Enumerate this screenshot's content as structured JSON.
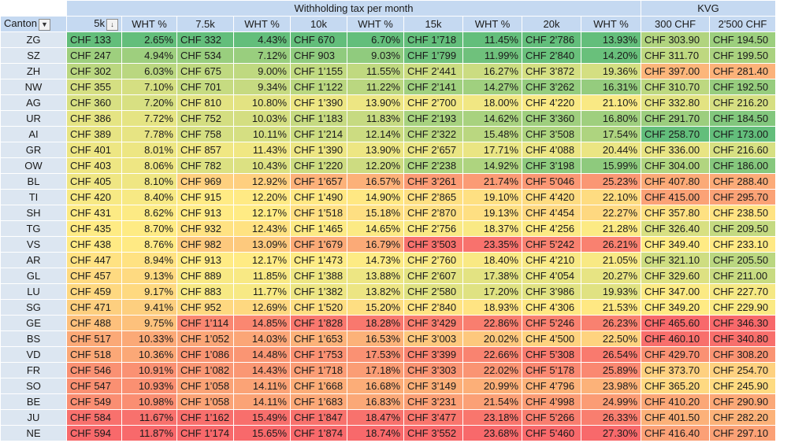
{
  "header": {
    "group_wht": "Withholding tax per month",
    "group_kvg": "KVG",
    "columns": [
      "Canton",
      "5k",
      "WHT %",
      "7.5k",
      "WHT %",
      "10k",
      "WHT %",
      "15k",
      "WHT %",
      "20k",
      "WHT %",
      "300 CHF",
      "2'500 CHF"
    ],
    "filter_icon": "▼",
    "sort_icon": "↓"
  },
  "rows": [
    [
      "ZG",
      "CHF 133",
      "2.65%",
      "CHF 332",
      "4.43%",
      "CHF 670",
      "6.70%",
      "CHF 1’718",
      "11.45%",
      "CHF 2’786",
      "13.93%",
      "CHF 303.90",
      "CHF 194.50"
    ],
    [
      "SZ",
      "CHF 247",
      "4.94%",
      "CHF 534",
      "7.12%",
      "CHF 903",
      "9.03%",
      "CHF 1’799",
      "11.99%",
      "CHF 2’840",
      "14.20%",
      "CHF 311.70",
      "CHF 199.50"
    ],
    [
      "ZH",
      "CHF 302",
      "6.03%",
      "CHF 675",
      "9.00%",
      "CHF 1’155",
      "11.55%",
      "CHF 2’441",
      "16.27%",
      "CHF 3’872",
      "19.36%",
      "CHF 397.00",
      "CHF 281.40"
    ],
    [
      "NW",
      "CHF 355",
      "7.10%",
      "CHF 701",
      "9.34%",
      "CHF 1’122",
      "11.22%",
      "CHF 2’141",
      "14.27%",
      "CHF 3’262",
      "16.31%",
      "CHF 310.70",
      "CHF 192.50"
    ],
    [
      "AG",
      "CHF 360",
      "7.20%",
      "CHF 810",
      "10.80%",
      "CHF 1’390",
      "13.90%",
      "CHF 2’700",
      "18.00%",
      "CHF 4’220",
      "21.10%",
      "CHF 332.80",
      "CHF 216.20"
    ],
    [
      "UR",
      "CHF 386",
      "7.72%",
      "CHF 752",
      "10.03%",
      "CHF 1’183",
      "11.83%",
      "CHF 2’193",
      "14.62%",
      "CHF 3’360",
      "16.80%",
      "CHF 291.70",
      "CHF 184.50"
    ],
    [
      "AI",
      "CHF 389",
      "7.78%",
      "CHF 758",
      "10.11%",
      "CHF 1’214",
      "12.14%",
      "CHF 2’322",
      "15.48%",
      "CHF 3’508",
      "17.54%",
      "CHF 258.70",
      "CHF 173.00"
    ],
    [
      "GR",
      "CHF 401",
      "8.01%",
      "CHF 857",
      "11.43%",
      "CHF 1’390",
      "13.90%",
      "CHF 2’657",
      "17.71%",
      "CHF 4’088",
      "20.44%",
      "CHF 336.00",
      "CHF 216.60"
    ],
    [
      "OW",
      "CHF 403",
      "8.06%",
      "CHF 782",
      "10.43%",
      "CHF 1’220",
      "12.20%",
      "CHF 2’238",
      "14.92%",
      "CHF 3’198",
      "15.99%",
      "CHF 304.00",
      "CHF 186.00"
    ],
    [
      "BL",
      "CHF 405",
      "8.10%",
      "CHF 969",
      "12.92%",
      "CHF 1’657",
      "16.57%",
      "CHF 3’261",
      "21.74%",
      "CHF 5’046",
      "25.23%",
      "CHF 407.80",
      "CHF 288.40"
    ],
    [
      "TI",
      "CHF 420",
      "8.40%",
      "CHF 915",
      "12.20%",
      "CHF 1’490",
      "14.90%",
      "CHF 2’865",
      "19.10%",
      "CHF 4’420",
      "22.10%",
      "CHF 415.00",
      "CHF 295.70"
    ],
    [
      "SH",
      "CHF 431",
      "8.62%",
      "CHF 913",
      "12.17%",
      "CHF 1’518",
      "15.18%",
      "CHF 2’870",
      "19.13%",
      "CHF 4’454",
      "22.27%",
      "CHF 357.80",
      "CHF 238.50"
    ],
    [
      "TG",
      "CHF 435",
      "8.70%",
      "CHF 932",
      "12.43%",
      "CHF 1’465",
      "14.65%",
      "CHF 2’756",
      "18.37%",
      "CHF 4’256",
      "21.28%",
      "CHF 326.40",
      "CHF 209.50"
    ],
    [
      "VS",
      "CHF 438",
      "8.76%",
      "CHF 982",
      "13.09%",
      "CHF 1’679",
      "16.79%",
      "CHF 3’503",
      "23.35%",
      "CHF 5’242",
      "26.21%",
      "CHF 349.40",
      "CHF 233.10"
    ],
    [
      "AR",
      "CHF 447",
      "8.94%",
      "CHF 913",
      "12.17%",
      "CHF 1’473",
      "14.73%",
      "CHF 2’760",
      "18.40%",
      "CHF 4’210",
      "21.05%",
      "CHF 321.10",
      "CHF 205.50"
    ],
    [
      "GL",
      "CHF 457",
      "9.13%",
      "CHF 889",
      "11.85%",
      "CHF 1’388",
      "13.88%",
      "CHF 2’607",
      "17.38%",
      "CHF 4’054",
      "20.27%",
      "CHF 329.60",
      "CHF 211.00"
    ],
    [
      "LU",
      "CHF 459",
      "9.17%",
      "CHF 883",
      "11.77%",
      "CHF 1’382",
      "13.82%",
      "CHF 2’580",
      "17.20%",
      "CHF 3’986",
      "19.93%",
      "CHF 347.00",
      "CHF 227.70"
    ],
    [
      "SG",
      "CHF 471",
      "9.41%",
      "CHF 952",
      "12.69%",
      "CHF 1’520",
      "15.20%",
      "CHF 2’840",
      "18.93%",
      "CHF 4’306",
      "21.53%",
      "CHF 349.20",
      "CHF 229.90"
    ],
    [
      "GE",
      "CHF 488",
      "9.75%",
      "CHF 1’114",
      "14.85%",
      "CHF 1’828",
      "18.28%",
      "CHF 3’429",
      "22.86%",
      "CHF 5’246",
      "26.23%",
      "CHF 465.60",
      "CHF 346.30"
    ],
    [
      "BS",
      "CHF 517",
      "10.33%",
      "CHF 1’052",
      "14.03%",
      "CHF 1’653",
      "16.53%",
      "CHF 3’003",
      "20.02%",
      "CHF 4’500",
      "22.50%",
      "CHF 460.10",
      "CHF 340.80"
    ],
    [
      "VD",
      "CHF 518",
      "10.36%",
      "CHF 1’086",
      "14.48%",
      "CHF 1’753",
      "17.53%",
      "CHF 3’399",
      "22.66%",
      "CHF 5’308",
      "26.54%",
      "CHF 429.70",
      "CHF 308.20"
    ],
    [
      "FR",
      "CHF 546",
      "10.91%",
      "CHF 1’082",
      "14.43%",
      "CHF 1’718",
      "17.18%",
      "CHF 3’303",
      "22.02%",
      "CHF 5’178",
      "25.89%",
      "CHF 373.70",
      "CHF 254.70"
    ],
    [
      "SO",
      "CHF 547",
      "10.93%",
      "CHF 1’058",
      "14.11%",
      "CHF 1’668",
      "16.68%",
      "CHF 3’149",
      "20.99%",
      "CHF 4’796",
      "23.98%",
      "CHF 365.20",
      "CHF 245.90"
    ],
    [
      "BE",
      "CHF 549",
      "10.98%",
      "CHF 1’058",
      "14.11%",
      "CHF 1’683",
      "16.83%",
      "CHF 3’231",
      "21.54%",
      "CHF 4’998",
      "24.99%",
      "CHF 410.20",
      "CHF 290.90"
    ],
    [
      "JU",
      "CHF 584",
      "11.67%",
      "CHF 1’162",
      "15.49%",
      "CHF 1’847",
      "18.47%",
      "CHF 3’477",
      "23.18%",
      "CHF 5’266",
      "26.33%",
      "CHF 401.50",
      "CHF 282.20"
    ],
    [
      "NE",
      "CHF 594",
      "11.87%",
      "CHF 1’174",
      "15.65%",
      "CHF 1’874",
      "18.74%",
      "CHF 3’552",
      "23.68%",
      "CHF 5’460",
      "27.30%",
      "CHF 416.40",
      "CHF 297.10"
    ]
  ]
}
